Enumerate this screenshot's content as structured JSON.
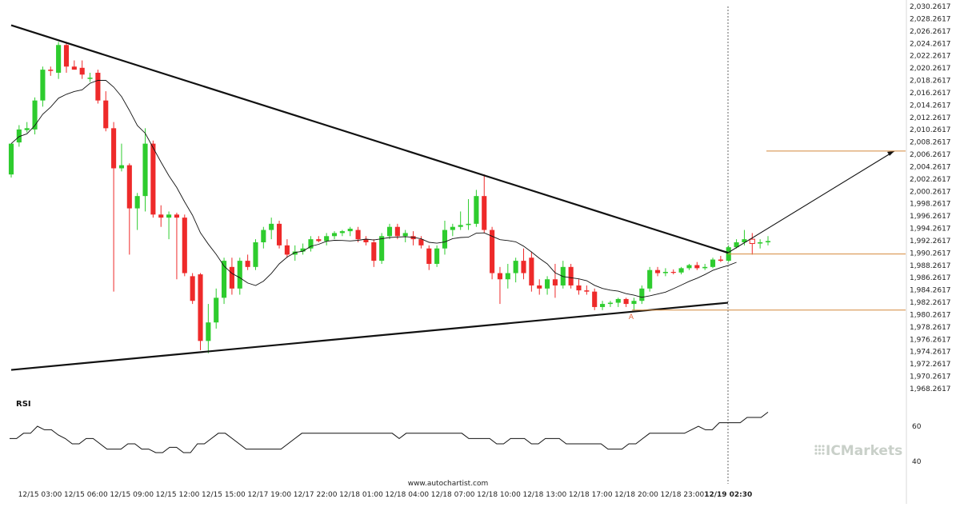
{
  "chart_data": {
    "type": "candlestick",
    "y_ticks": [
      "2,030.2617",
      "2,028.2617",
      "2,026.2617",
      "2,024.2617",
      "2,022.2617",
      "2,020.2617",
      "2,018.2617",
      "2,016.2617",
      "2,014.2617",
      "2,012.2617",
      "2,010.2617",
      "2,008.2617",
      "2,006.2617",
      "2,004.2617",
      "2,002.2617",
      "2,000.2617",
      "1,998.2617",
      "1,996.2617",
      "1,994.2617",
      "1,992.2617",
      "1,990.2617",
      "1,988.2617",
      "1,986.2617",
      "1,984.2617",
      "1,982.2617",
      "1,980.2617",
      "1,978.2617",
      "1,976.2617",
      "1,974.2617",
      "1,972.2617",
      "1,970.2617",
      "1,968.2617"
    ],
    "x_ticks": [
      "12/15 03:00",
      "12/15 06:00",
      "12/15 09:00",
      "12/15 12:00",
      "12/15 15:00",
      "12/17 19:00",
      "12/17 22:00",
      "12/18 01:00",
      "12/18 04:00",
      "12/18 07:00",
      "12/18 10:00",
      "12/18 13:00",
      "12/18 17:00",
      "12/18 20:00",
      "12/18 23:00",
      "12/19 02:30"
    ],
    "highlight_x_tick": "12/19 02:30",
    "rsi": {
      "title": "RSI",
      "ticks": [
        "60",
        "40"
      ],
      "values": [
        53,
        53,
        56,
        56,
        60,
        58,
        58,
        55,
        53,
        50,
        50,
        53,
        53,
        50,
        47,
        47,
        47,
        50,
        50,
        47,
        47,
        45,
        45,
        48,
        48,
        45,
        45,
        50,
        50,
        53,
        56,
        56,
        53,
        50,
        47,
        47,
        47,
        47,
        47,
        47,
        50,
        53,
        56,
        56,
        56,
        56,
        56,
        56,
        56,
        56,
        56,
        56,
        56,
        56,
        56,
        56,
        53,
        56,
        56,
        56,
        56,
        56,
        56,
        56,
        56,
        56,
        53,
        53,
        53,
        53,
        50,
        50,
        53,
        53,
        53,
        50,
        50,
        53,
        53,
        53,
        50,
        50,
        50,
        50,
        50,
        50,
        47,
        47,
        47,
        50,
        50,
        53,
        56,
        56,
        56,
        56,
        56,
        56,
        58,
        60,
        58,
        58,
        62,
        62,
        62,
        62,
        65,
        65,
        65,
        68
      ]
    },
    "watermark": "www.autochartist.com",
    "brand": "ICMarkets",
    "annotation": "A"
  }
}
